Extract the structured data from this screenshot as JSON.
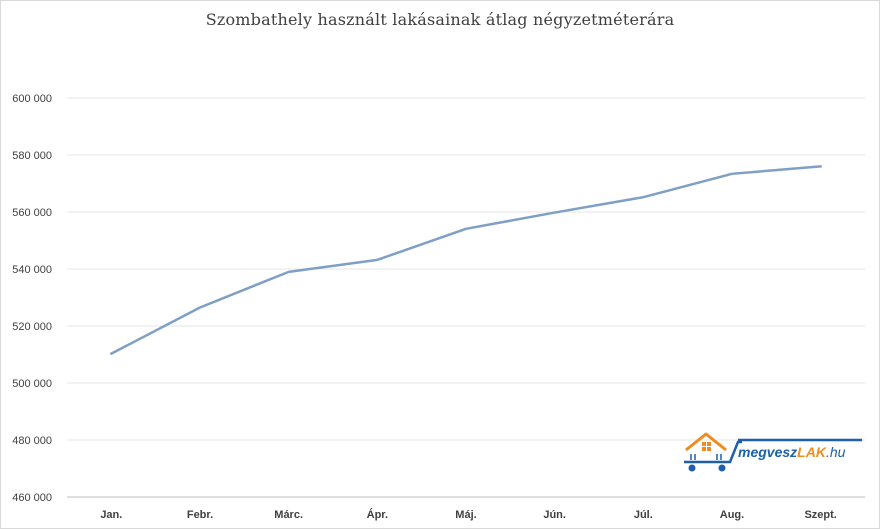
{
  "chart_data": {
    "type": "line",
    "title": "Szombathely használt lakásainak átlag négyzetméterára",
    "xlabel": "",
    "ylabel": "",
    "categories": [
      "Jan.",
      "Febr.",
      "Márc.",
      "Ápr.",
      "Máj.",
      "Jún.",
      "Júl.",
      "Aug.",
      "Szept."
    ],
    "series": [
      {
        "values": [
          510300,
          526500,
          539000,
          543200,
          554100,
          559800,
          565200,
          573400,
          576000
        ],
        "color": "#7f9fc4"
      }
    ],
    "ylim": [
      460000,
      600000
    ],
    "yticks": [
      460000,
      480000,
      500000,
      520000,
      540000,
      560000,
      580000,
      600000
    ],
    "ytick_labels": [
      "460 000",
      "480 000",
      "500 000",
      "520 000",
      "540 000",
      "560 000",
      "580 000",
      "600 000"
    ],
    "grid": true,
    "legend": "none"
  },
  "logo": {
    "text_part1": "megvesz",
    "text_part2": "LAK",
    "text_part3": ".hu",
    "icon": "house-cart-icon"
  }
}
